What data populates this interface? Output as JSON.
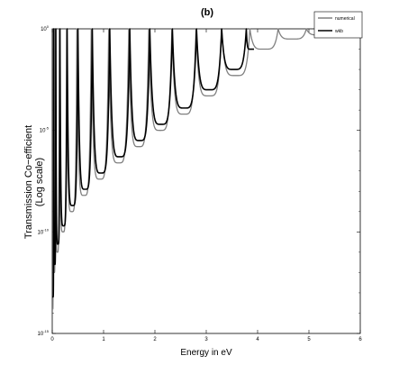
{
  "chart_data": {
    "type": "line",
    "title": "(b)",
    "xlabel": "Energy in eV",
    "ylabel": "Transmission Co−efficient",
    "ylabel2": "(Log scale)",
    "xlim": [
      0,
      6
    ],
    "ylim": [
      1e-15,
      1
    ],
    "yscale": "log",
    "x_ticks": [
      "0",
      "1",
      "2",
      "3",
      "4",
      "5",
      "6"
    ],
    "y_ticks": [
      {
        "base": "10",
        "exp": "0"
      },
      {
        "base": "10",
        "exp": "-5"
      },
      {
        "base": "10",
        "exp": "-10"
      },
      {
        "base": "10",
        "exp": "-15"
      }
    ],
    "legend": {
      "position": "top-right",
      "entries": [
        "numerical",
        "wkb"
      ]
    },
    "grid": false,
    "series": [
      {
        "name": "numerical",
        "color": "#808080",
        "resonances": [
          0.02,
          0.06,
          0.14,
          0.28,
          0.48,
          0.76,
          1.1,
          1.49,
          1.88,
          2.33,
          2.8,
          3.3,
          3.85,
          4.4,
          4.95,
          5.5
        ],
        "trough_log10": [
          -13.8,
          -12.0,
          -11.0,
          -10.0,
          -9.0,
          -8.2,
          -7.4,
          -6.6,
          -5.8,
          -5.0,
          -4.2,
          -3.3,
          -2.3,
          -1.0,
          -0.5,
          -0.3,
          -0.2
        ]
      },
      {
        "name": "wkb",
        "color": "#000000",
        "resonances": [
          0.03,
          0.07,
          0.15,
          0.29,
          0.5,
          0.78,
          1.12,
          1.51,
          1.9,
          2.34,
          2.81,
          3.3,
          3.78
        ],
        "trough_log10": [
          -13.2,
          -11.6,
          -10.6,
          -9.7,
          -8.7,
          -7.9,
          -7.1,
          -6.3,
          -5.5,
          -4.7,
          -3.9,
          -3.0,
          -2.0,
          -1.0
        ]
      }
    ]
  }
}
